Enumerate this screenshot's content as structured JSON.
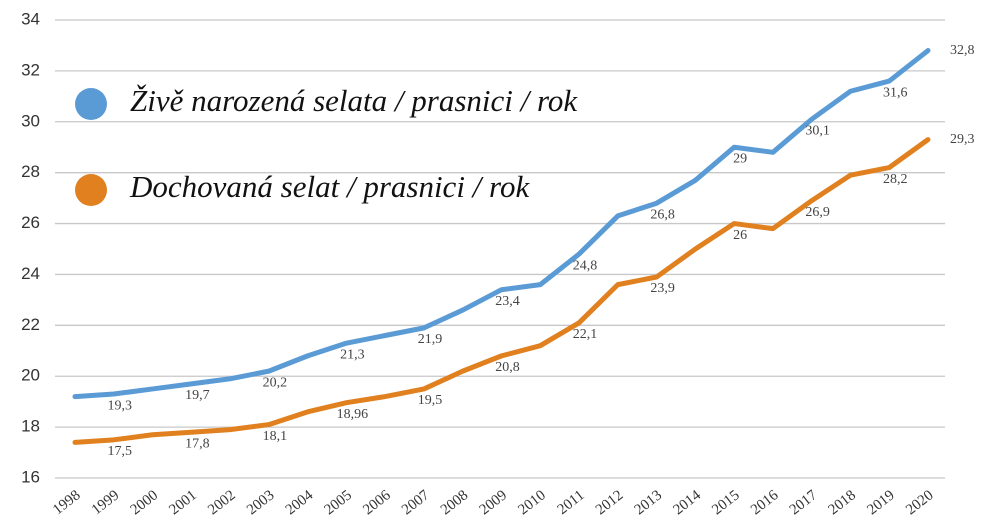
{
  "chart_data": {
    "type": "line",
    "categories": [
      "1998",
      "1999",
      "2000",
      "2001",
      "2002",
      "2003",
      "2004",
      "2005",
      "2006",
      "2007",
      "2008",
      "2009",
      "2010",
      "2011",
      "2012",
      "2013",
      "2014",
      "2015",
      "2016",
      "2017",
      "2018",
      "2019",
      "2020"
    ],
    "series": [
      {
        "name": "Živě narozená selata / prasnici / rok",
        "color": "#5b9bd5",
        "values": [
          19.2,
          19.3,
          19.5,
          19.7,
          19.9,
          20.2,
          20.8,
          21.3,
          21.6,
          21.9,
          22.6,
          23.4,
          23.6,
          24.8,
          26.3,
          26.8,
          27.7,
          29,
          28.8,
          30.1,
          31.2,
          31.6,
          32.8
        ],
        "value_labels": [
          null,
          "19,3",
          null,
          "19,7",
          null,
          "20,2",
          null,
          "21,3",
          null,
          "21,9",
          null,
          "23,4",
          null,
          "24,8",
          null,
          "26,8",
          null,
          "29",
          null,
          "30,1",
          null,
          "31,6",
          "32,8"
        ]
      },
      {
        "name": "Dochovaná selat / prasnici / rok",
        "color": "#e0801f",
        "values": [
          17.4,
          17.5,
          17.7,
          17.8,
          17.9,
          18.1,
          18.6,
          18.96,
          19.2,
          19.5,
          20.2,
          20.8,
          21.2,
          22.1,
          23.6,
          23.9,
          25.0,
          26,
          25.8,
          26.9,
          27.9,
          28.2,
          29.3
        ],
        "value_labels": [
          null,
          "17,5",
          null,
          "17,8",
          null,
          "18,1",
          null,
          "18,96",
          null,
          "19,5",
          null,
          "20,8",
          null,
          "22,1",
          null,
          "23,9",
          null,
          "26",
          null,
          "26,9",
          null,
          "28,2",
          "29,3"
        ]
      }
    ],
    "ylim": [
      16,
      34
    ],
    "yticks": [
      16,
      18,
      20,
      22,
      24,
      26,
      28,
      30,
      32,
      34
    ],
    "grid": true,
    "legend": "upper left"
  }
}
